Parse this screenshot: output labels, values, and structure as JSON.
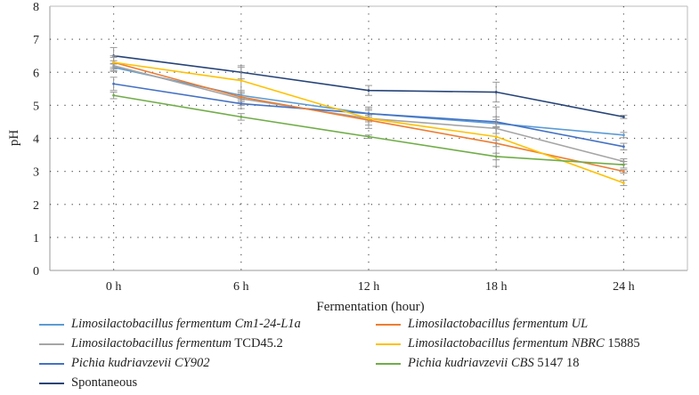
{
  "chart_data": {
    "type": "line",
    "title": "",
    "xlabel": "Fermentation (hour)",
    "ylabel": "pH",
    "categories": [
      "0 h",
      "6 h",
      "12 h",
      "18 h",
      "24 h"
    ],
    "ylim": [
      0,
      8
    ],
    "yticks": [
      0,
      1,
      2,
      3,
      4,
      5,
      6,
      7,
      8
    ],
    "grid": true,
    "legend_position": "bottom",
    "series": [
      {
        "name": "Limosilactobacillus fermentum Cm1-24-L1a",
        "italic": "Limosilactobacillus fermentum Cm1-24-L1a",
        "plain": "",
        "color": "#5b9bd5",
        "values": [
          6.15,
          5.3,
          4.75,
          4.45,
          4.1
        ],
        "errors": [
          0.12,
          0.15,
          0.1,
          0.12,
          0.08
        ]
      },
      {
        "name": "Limosilactobacillus fermentum TCD45.2",
        "italic": "Limosilactobacillus fermentum",
        "plain": " TCD45.2",
        "color": "#a5a5a5",
        "values": [
          6.2,
          5.2,
          4.6,
          4.3,
          3.3
        ],
        "errors": [
          0.15,
          0.2,
          0.3,
          0.15,
          0.08
        ]
      },
      {
        "name": "Pichia kudriavzevii CY902",
        "italic": "Pichia kudriavzevii CY902",
        "plain": "",
        "color": "#4472c4",
        "values": [
          5.65,
          5.05,
          4.75,
          4.5,
          3.75
        ],
        "errors": [
          0.2,
          0.15,
          0.2,
          0.15,
          0.1
        ]
      },
      {
        "name": "Spontaneous",
        "italic": "",
        "plain": "Spontaneous",
        "color": "#264478",
        "values": [
          6.5,
          6.0,
          5.45,
          5.4,
          4.65
        ],
        "errors": [
          0.25,
          0.2,
          0.15,
          0.3,
          0.05
        ]
      },
      {
        "name": "Limosilactobacillus fermentum UL",
        "italic": "Limosilactobacillus fermentum UL",
        "plain": "",
        "color": "#ed7d31",
        "values": [
          6.3,
          5.25,
          4.55,
          3.85,
          3.0
        ],
        "errors": [
          0.2,
          0.15,
          0.15,
          0.1,
          0.05
        ]
      },
      {
        "name": "Limosilactobacillus fermentum NBRC 15885",
        "italic": "Limosilactobacillus fermentum NBRC",
        "plain": " 15885",
        "color": "#ffc000",
        "values": [
          6.3,
          5.75,
          4.6,
          4.05,
          2.65
        ],
        "errors": [
          0.15,
          0.4,
          0.1,
          0.9,
          0.08
        ]
      },
      {
        "name": "Pichia kudriavzevii CBS 5147 18",
        "italic": "Pichia kudriavzevii CBS",
        "plain": " 5147 18",
        "color": "#70ad47",
        "values": [
          5.3,
          4.65,
          4.05,
          3.45,
          3.2
        ],
        "errors": [
          0.1,
          0.1,
          0.05,
          0.1,
          0.1
        ]
      }
    ]
  }
}
